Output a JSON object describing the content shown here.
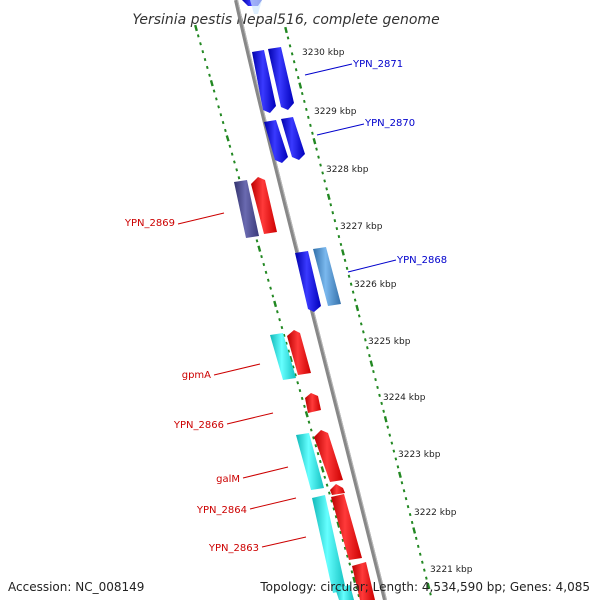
{
  "title": "Yersinia pestis Nepal516, complete genome",
  "ticks": [
    "3230 kbp",
    "3229 kbp",
    "3228 kbp",
    "3227 kbp",
    "3226 kbp",
    "3225 kbp",
    "3224 kbp",
    "3223 kbp",
    "3222 kbp",
    "3221 kbp"
  ],
  "genes": [
    {
      "label": "YPN_2871",
      "color": "#0000cc"
    },
    {
      "label": "YPN_2870",
      "color": "#0000cc"
    },
    {
      "label": "YPN_2869",
      "color": "#cc0000"
    },
    {
      "label": "YPN_2868",
      "color": "#0000cc"
    },
    {
      "label": "gpmA",
      "color": "#cc0000"
    },
    {
      "label": "YPN_2866",
      "color": "#cc0000"
    },
    {
      "label": "galM",
      "color": "#cc0000"
    },
    {
      "label": "YPN_2864",
      "color": "#cc0000"
    },
    {
      "label": "YPN_2863",
      "color": "#cc0000"
    }
  ],
  "feature_colors": {
    "blue": "#1a1aee",
    "red": "#ee1111",
    "cyan": "#22d4d4",
    "slate": "#4a4a9a",
    "steel": "#4a8ac8",
    "backbone": "#888888",
    "tick": "#228822"
  },
  "footer": {
    "accession": "Accession: NC_008149",
    "summary": "Topology: circular; Length: 4,534,590 bp; Genes: 4,085"
  }
}
